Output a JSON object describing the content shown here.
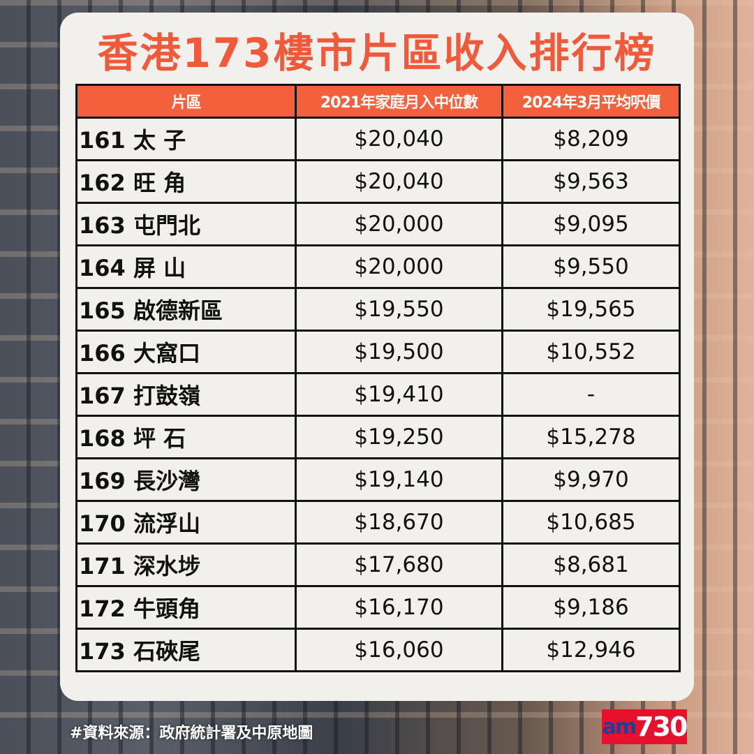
{
  "title": "香港173樓市片區收入排行榜",
  "table": {
    "headers": [
      "片區",
      "2021年家庭月入中位數",
      "2024年3月平均呎價"
    ],
    "rows": [
      {
        "area": "161 太 子",
        "income": "$20,040",
        "price": "$8,209"
      },
      {
        "area": "162 旺 角",
        "income": "$20,040",
        "price": "$9,563"
      },
      {
        "area": "163 屯門北",
        "income": "$20,000",
        "price": "$9,095"
      },
      {
        "area": "164 屏 山",
        "income": "$20,000",
        "price": "$9,550"
      },
      {
        "area": "165 啟德新區",
        "income": "$19,550",
        "price": "$19,565"
      },
      {
        "area": "166 大窩口",
        "income": "$19,500",
        "price": "$10,552"
      },
      {
        "area": "167 打鼓嶺",
        "income": "$19,410",
        "price": "-"
      },
      {
        "area": "168 坪 石",
        "income": "$19,250",
        "price": "$15,278"
      },
      {
        "area": "169 長沙灣",
        "income": "$19,140",
        "price": "$9,970"
      },
      {
        "area": "170 流浮山",
        "income": "$18,670",
        "price": "$10,685"
      },
      {
        "area": "171 深水埗",
        "income": "$17,680",
        "price": "$8,681"
      },
      {
        "area": "172 牛頭角",
        "income": "$16,170",
        "price": "$9,186"
      },
      {
        "area": "173 石硤尾",
        "income": "$16,060",
        "price": "$12,946"
      }
    ]
  },
  "footer": {
    "source": "#資料來源：政府統計署及中原地圖",
    "logo_am": "am",
    "logo_num": "730"
  },
  "colors": {
    "accent": "#f0593a",
    "logo_red": "#e8112d",
    "logo_blue": "#1d3f9a"
  }
}
